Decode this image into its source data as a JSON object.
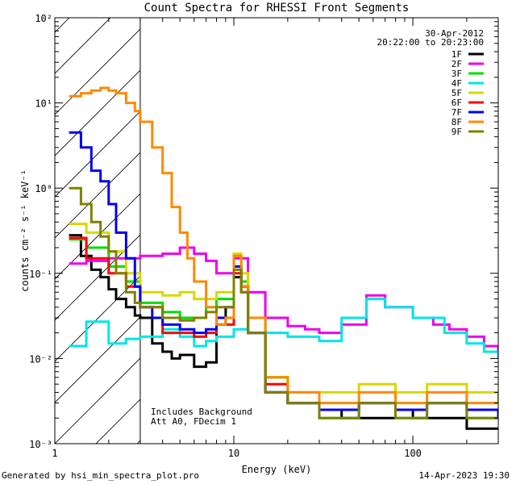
{
  "chart_data": {
    "type": "line",
    "title": "Count Spectra for RHESSI Front Segments",
    "xlabel": "Energy (keV)",
    "ylabel": "counts cm⁻² s⁻¹ keV⁻¹",
    "xscale": "log",
    "yscale": "log",
    "xlim": [
      1,
      300
    ],
    "ylim": [
      0.001,
      100
    ],
    "x_ticks": [
      "1",
      "10",
      "100"
    ],
    "y_ticks": [
      "10⁻³",
      "10⁻²",
      "10⁻¹",
      "10⁰",
      "10¹",
      "10²"
    ],
    "date": "30-Apr-2012",
    "time_range": "20:22:00 to 20:23:00",
    "legend_placement": "top-right",
    "hatched_region_xmax": 3,
    "annotations": [
      "Includes Background",
      "Att A0, FDecim 1"
    ],
    "series": [
      {
        "name": "1F",
        "color": "#000000",
        "x": [
          1.2,
          1.4,
          1.6,
          1.8,
          2.0,
          2.2,
          2.5,
          2.8,
          3.0,
          3.5,
          4.0,
          4.5,
          5.0,
          6.0,
          7.0,
          8.0,
          9.0,
          10.0,
          11.0,
          12.0,
          15.0,
          20.0,
          30.0,
          40.0,
          60.0,
          80.0,
          100.0,
          150.0,
          200.0,
          250.0,
          300.0
        ],
        "y": [
          0.28,
          0.16,
          0.11,
          0.09,
          0.065,
          0.05,
          0.04,
          0.032,
          0.03,
          0.015,
          0.012,
          0.01,
          0.011,
          0.008,
          0.009,
          0.025,
          0.04,
          0.09,
          0.07,
          0.02,
          0.004,
          0.003,
          0.0025,
          0.002,
          0.002,
          0.0025,
          0.002,
          0.002,
          0.0015,
          0.0015,
          0.0015
        ]
      },
      {
        "name": "2F",
        "color": "#ee00ee",
        "x": [
          1.2,
          1.5,
          2.0,
          3.0,
          4.0,
          5.0,
          6.0,
          7.0,
          8.0,
          10.0,
          12.0,
          15.0,
          20.0,
          25.0,
          30.0,
          40.0,
          55.0,
          70.0,
          100.0,
          130.0,
          160.0,
          200.0,
          250.0,
          300.0
        ],
        "y": [
          0.13,
          0.14,
          0.15,
          0.16,
          0.17,
          0.2,
          0.17,
          0.14,
          0.1,
          0.15,
          0.06,
          0.03,
          0.024,
          0.022,
          0.02,
          0.025,
          0.055,
          0.04,
          0.03,
          0.025,
          0.022,
          0.018,
          0.014,
          0.011
        ]
      },
      {
        "name": "3F",
        "color": "#00dd00",
        "x": [
          1.2,
          1.5,
          2.0,
          2.5,
          3.0,
          4.0,
          5.0,
          6.0,
          7.0,
          8.0,
          10.0,
          11.0,
          12.0,
          15.0,
          20.0,
          30.0,
          50.0,
          80.0,
          120.0,
          200.0,
          300.0
        ],
        "y": [
          0.25,
          0.2,
          0.12,
          0.08,
          0.045,
          0.035,
          0.03,
          0.03,
          0.04,
          0.05,
          0.12,
          0.08,
          0.03,
          0.006,
          0.003,
          0.002,
          0.003,
          0.002,
          0.003,
          0.002,
          0.002
        ]
      },
      {
        "name": "4F",
        "color": "#00e6e6",
        "x": [
          1.2,
          1.5,
          2.0,
          2.5,
          3.0,
          4.0,
          5.0,
          6.0,
          7.0,
          8.0,
          10.0,
          12.0,
          15.0,
          20.0,
          30.0,
          40.0,
          55.0,
          70.0,
          100.0,
          150.0,
          200.0,
          250.0,
          300.0
        ],
        "y": [
          0.014,
          0.027,
          0.015,
          0.017,
          0.018,
          0.022,
          0.018,
          0.014,
          0.016,
          0.018,
          0.022,
          0.02,
          0.02,
          0.018,
          0.016,
          0.03,
          0.05,
          0.04,
          0.03,
          0.02,
          0.015,
          0.012,
          0.01
        ]
      },
      {
        "name": "5F",
        "color": "#d8d800",
        "x": [
          1.2,
          1.5,
          2.0,
          2.5,
          3.0,
          4.0,
          5.0,
          6.0,
          7.0,
          8.0,
          10.0,
          11.0,
          12.0,
          15.0,
          20.0,
          30.0,
          50.0,
          80.0,
          120.0,
          200.0,
          300.0
        ],
        "y": [
          0.38,
          0.3,
          0.18,
          0.1,
          0.06,
          0.055,
          0.06,
          0.05,
          0.05,
          0.06,
          0.17,
          0.1,
          0.03,
          0.006,
          0.004,
          0.004,
          0.005,
          0.004,
          0.005,
          0.004,
          0.003
        ]
      },
      {
        "name": "6F",
        "color": "#ff0000",
        "x": [
          1.2,
          1.5,
          2.0,
          2.5,
          3.0,
          4.0,
          5.0,
          6.0,
          7.0,
          8.0,
          10.0,
          11.0,
          12.0,
          15.0,
          20.0,
          30.0,
          50.0,
          80.0,
          120.0,
          200.0,
          300.0
        ],
        "y": [
          0.26,
          0.15,
          0.1,
          0.07,
          0.04,
          0.02,
          0.02,
          0.018,
          0.02,
          0.025,
          0.1,
          0.06,
          0.02,
          0.005,
          0.003,
          0.0025,
          0.003,
          0.0025,
          0.003,
          0.0025,
          0.002
        ]
      },
      {
        "name": "7F",
        "color": "#0000ee",
        "x": [
          1.2,
          1.4,
          1.6,
          1.8,
          2.0,
          2.2,
          2.5,
          2.8,
          3.0,
          3.5,
          4.0,
          5.0,
          6.0,
          7.0,
          8.0,
          10.0,
          11.0,
          12.0,
          15.0,
          20.0,
          30.0,
          50.0,
          80.0,
          120.0,
          200.0,
          300.0
        ],
        "y": [
          4.5,
          3.0,
          1.6,
          1.2,
          0.65,
          0.3,
          0.15,
          0.07,
          0.04,
          0.03,
          0.025,
          0.022,
          0.02,
          0.022,
          0.03,
          0.12,
          0.07,
          0.02,
          0.004,
          0.003,
          0.0025,
          0.003,
          0.0025,
          0.003,
          0.0025,
          0.002
        ]
      },
      {
        "name": "8F",
        "color": "#ff8800",
        "x": [
          1.2,
          1.4,
          1.6,
          1.8,
          2.0,
          2.2,
          2.5,
          2.8,
          3.0,
          3.5,
          4.0,
          4.5,
          5.0,
          5.5,
          6.0,
          7.0,
          8.0,
          9.0,
          10.0,
          11.0,
          12.0,
          15.0,
          20.0,
          30.0,
          50.0,
          80.0,
          120.0,
          200.0,
          300.0
        ],
        "y": [
          12,
          13,
          14,
          15,
          14,
          13,
          10,
          8,
          6,
          3,
          1.5,
          0.6,
          0.3,
          0.15,
          0.08,
          0.04,
          0.025,
          0.03,
          0.16,
          0.07,
          0.03,
          0.006,
          0.004,
          0.003,
          0.004,
          0.003,
          0.004,
          0.003,
          0.003
        ]
      },
      {
        "name": "9F",
        "color": "#808000",
        "x": [
          1.2,
          1.4,
          1.6,
          1.8,
          2.0,
          2.2,
          2.5,
          2.8,
          3.0,
          3.5,
          4.0,
          5.0,
          6.0,
          7.0,
          8.0,
          10.0,
          11.0,
          12.0,
          15.0,
          20.0,
          30.0,
          50.0,
          80.0,
          120.0,
          200.0,
          300.0
        ],
        "y": [
          1.0,
          0.65,
          0.4,
          0.27,
          0.18,
          0.1,
          0.06,
          0.045,
          0.04,
          0.04,
          0.03,
          0.028,
          0.03,
          0.035,
          0.04,
          0.11,
          0.06,
          0.02,
          0.004,
          0.003,
          0.002,
          0.003,
          0.002,
          0.003,
          0.002,
          0.002
        ]
      }
    ]
  },
  "footer": {
    "generator": "Generated by hsi_min_spectra_plot.pro",
    "timestamp": "14-Apr-2023 19:30"
  }
}
